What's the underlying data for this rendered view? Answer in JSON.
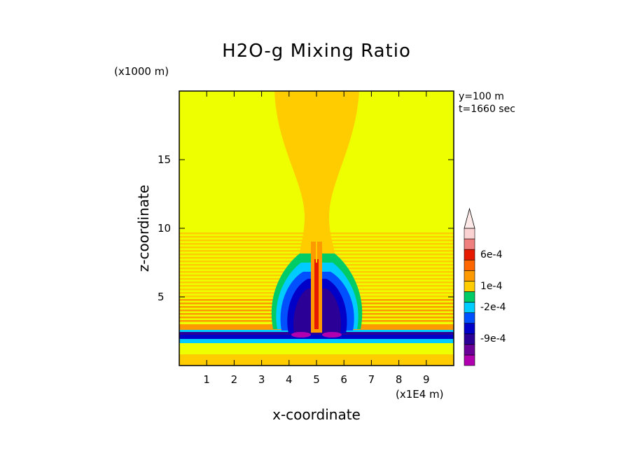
{
  "chart_data": {
    "type": "heatmap",
    "title": "H2O-g Mixing Ratio",
    "xlabel": "x-coordinate",
    "ylabel": "z-coordinate",
    "x_unit": "(x1E4 m)",
    "y_unit": "(x1000 m)",
    "annotations": [
      "y=100 m",
      "t=1660 sec"
    ],
    "xlim": [
      0,
      10
    ],
    "ylim": [
      0,
      20
    ],
    "x_ticks": [
      "1",
      "2",
      "3",
      "4",
      "5",
      "6",
      "7",
      "8",
      "9"
    ],
    "y_ticks": [
      "5",
      "10",
      "15"
    ],
    "colorbar": {
      "levels": [
        "6e-4",
        "1e-4",
        "-2e-4",
        "-9e-4"
      ],
      "colors": [
        "#b000b0",
        "#6a0098",
        "#2a0096",
        "#0000c8",
        "#0050ff",
        "#00ccff",
        "#00cc66",
        "#ffcc00",
        "#ff9900",
        "#ff6600",
        "#e61a00",
        "#f08080",
        "#fad2d2"
      ]
    },
    "field_description_values": {
      "background": "#eeff00",
      "plume_core_x": 5.0,
      "plume_top_z": 20,
      "anomaly_band_z": [
        1.5,
        2.5
      ],
      "max_positive_level": "6e-4",
      "min_negative_level": "-9e-4"
    }
  }
}
